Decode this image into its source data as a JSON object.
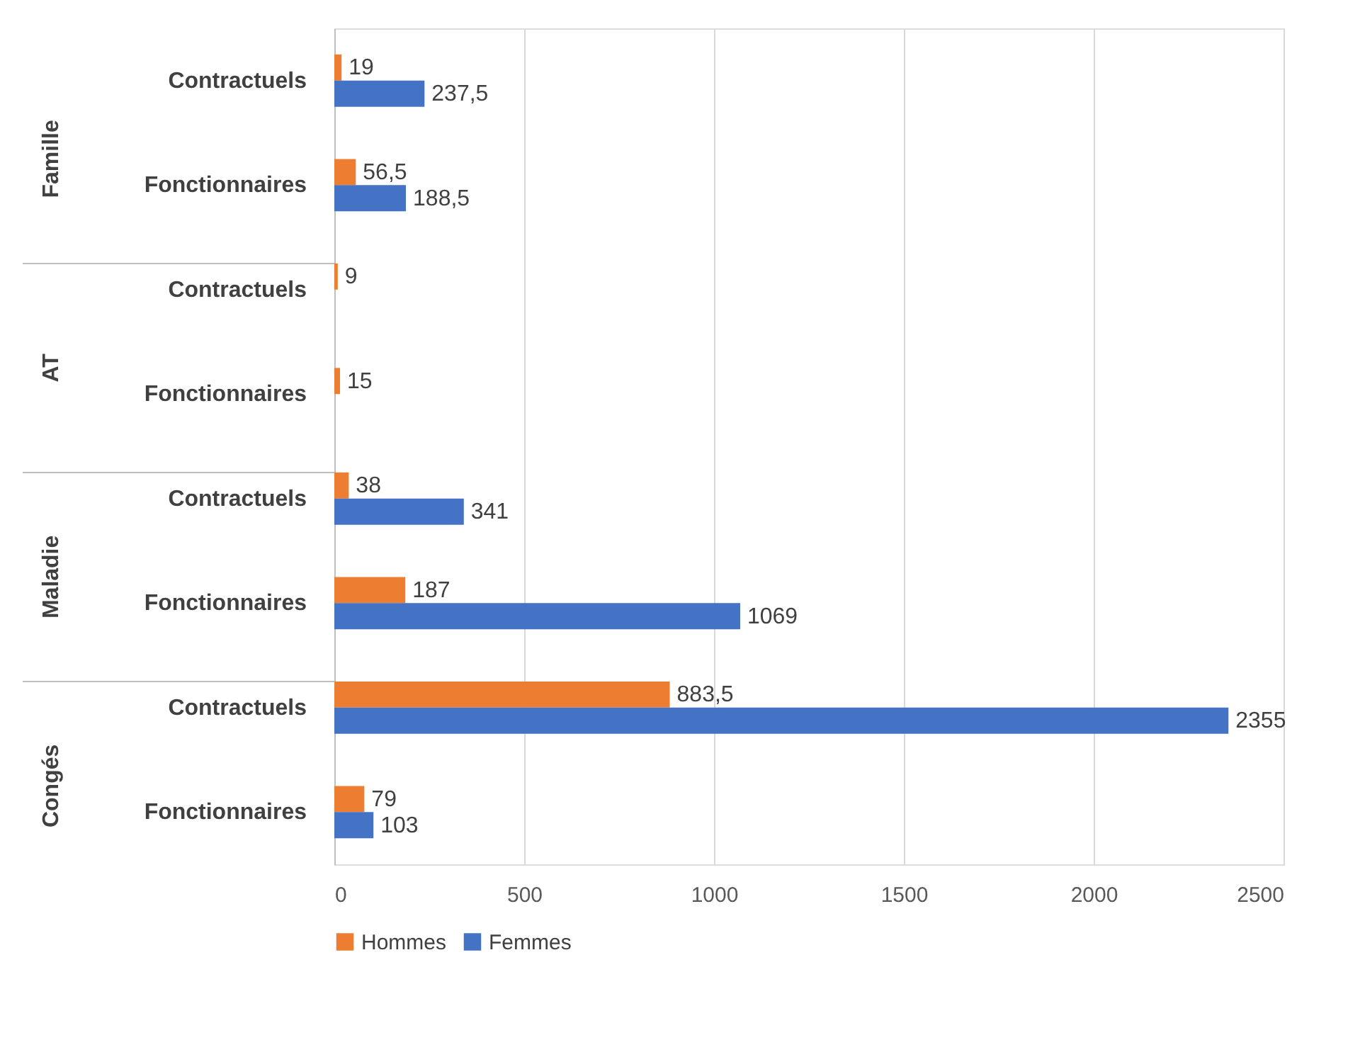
{
  "chart_data": {
    "type": "bar",
    "orientation": "horizontal",
    "categories": [
      "Contractuels",
      "Fonctionnaires",
      "Contractuels",
      "Fonctionnaires",
      "Contractuels",
      "Fonctionnaires",
      "Contractuels",
      "Fonctionnaires"
    ],
    "annotations": [
      "Famille",
      "AT",
      "Maladie",
      "Congés"
    ],
    "series": [
      {
        "name": "Hommes",
        "color": "#ed7d31",
        "values": [
          19,
          56.5,
          9,
          15,
          38,
          187,
          883.5,
          79
        ],
        "value_labels": [
          "19",
          "56,5",
          "9",
          "15",
          "38",
          "187",
          "883,5",
          "79"
        ]
      },
      {
        "name": "Femmes",
        "color": "#4472c4",
        "values": [
          237.5,
          188.5,
          null,
          null,
          341,
          1069,
          2355,
          103
        ],
        "value_labels": [
          "237,5",
          "188,5",
          null,
          null,
          "341",
          "1069",
          "2355",
          "103"
        ]
      }
    ],
    "xlim": [
      0,
      2500
    ],
    "xticks": [
      0,
      500,
      1000,
      1500,
      2000,
      2500
    ],
    "grid": "x",
    "legend": "bottom"
  }
}
